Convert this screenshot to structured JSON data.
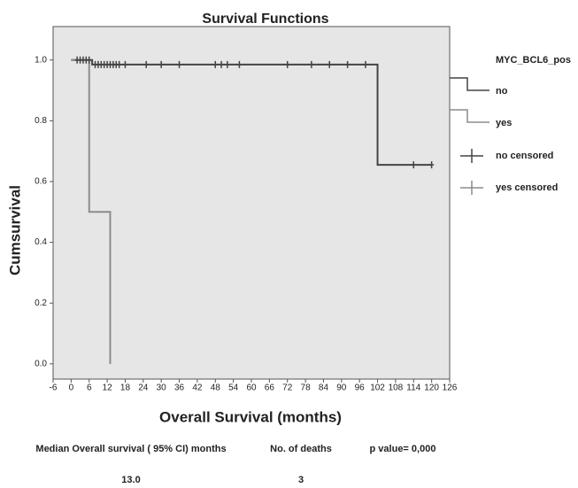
{
  "chart_data": {
    "type": "line",
    "title": "Survival Functions",
    "x_label": "Overall Survival (months)",
    "y_label": "Cumsurvival",
    "legend_title": "MYC_BCL6_pos",
    "legend": "right",
    "xlim": [
      -6,
      126
    ],
    "ylim": [
      -0.05,
      1.11
    ],
    "xticks": [
      -6,
      0,
      6,
      12,
      18,
      24,
      30,
      36,
      42,
      48,
      54,
      60,
      66,
      72,
      78,
      84,
      90,
      96,
      102,
      108,
      114,
      120,
      126
    ],
    "yticks": [
      {
        "value": 0,
        "label": "0.0"
      },
      {
        "value": 0.2,
        "label": "0.2"
      },
      {
        "value": 0.4,
        "label": "0.4"
      },
      {
        "value": 0.6,
        "label": "0.6"
      },
      {
        "value": 0.8,
        "label": "0.8"
      },
      {
        "value": 1,
        "label": "1.0"
      }
    ],
    "background": "#e6e6e6",
    "series": [
      {
        "name": "no",
        "color": "#444444",
        "style": "step",
        "x": [
          0,
          7,
          7,
          102,
          102,
          120
        ],
        "values": [
          1,
          1,
          0.985,
          0.985,
          0.655,
          0.655
        ]
      },
      {
        "name": "yes",
        "color": "#8c8c8c",
        "style": "step",
        "x": [
          0,
          6,
          6,
          13,
          13
        ],
        "values": [
          1,
          1,
          0.5,
          0.5,
          0
        ]
      },
      {
        "name": "no censored",
        "color": "#444444",
        "style": "censor",
        "x": [
          2,
          3,
          4,
          5,
          6,
          8,
          9,
          10,
          11,
          12,
          13,
          14,
          15,
          16,
          18,
          25,
          30,
          36,
          48,
          50,
          52,
          56,
          72,
          80,
          86,
          92,
          98,
          114,
          120
        ],
        "values": [
          1,
          1,
          1,
          1,
          1,
          0.985,
          0.985,
          0.985,
          0.985,
          0.985,
          0.985,
          0.985,
          0.985,
          0.985,
          0.985,
          0.985,
          0.985,
          0.985,
          0.985,
          0.985,
          0.985,
          0.985,
          0.985,
          0.985,
          0.985,
          0.985,
          0.985,
          0.655,
          0.655
        ]
      },
      {
        "name": "yes censored",
        "color": "#8c8c8c",
        "style": "censor",
        "x": [],
        "values": []
      }
    ]
  },
  "table": {
    "headers": [
      "Median Overall survival ( 95% CI) months",
      "No. of deaths",
      "p value= 0,000"
    ],
    "rows": [
      [
        "13.0",
        "3"
      ]
    ]
  }
}
